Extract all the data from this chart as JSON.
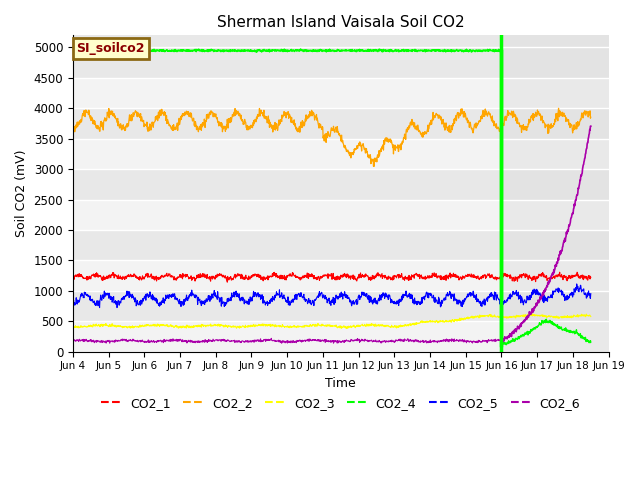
{
  "title": "Sherman Island Vaisala Soil CO2",
  "ylabel": "Soil CO2 (mV)",
  "xlabel": "Time",
  "annotation_text": "SI_soilco2",
  "ylim": [
    0,
    5200
  ],
  "yticks": [
    0,
    500,
    1000,
    1500,
    2000,
    2500,
    3000,
    3500,
    4000,
    4500,
    5000
  ],
  "x_tick_labels": [
    "Jun 4",
    "Jun 5",
    "Jun 6",
    "Jun 7",
    "Jun 8",
    "Jun 9",
    "Jun 10",
    "Jun 11",
    "Jun 12",
    "Jun 13",
    "Jun 14",
    "Jun 15",
    "Jun 16",
    "Jun 17",
    "Jun 18",
    "Jun 19"
  ],
  "x_tick_positions": [
    4,
    5,
    6,
    7,
    8,
    9,
    10,
    11,
    12,
    13,
    14,
    15,
    16,
    17,
    18,
    19
  ],
  "vline_x": 16,
  "background_color": "#e8e8e8",
  "panel2_color": "#d8d8d8",
  "colors": {
    "CO2_1": "#ff0000",
    "CO2_2": "#ffa500",
    "CO2_3": "#ffff00",
    "CO2_4": "#00ff00",
    "CO2_5": "#0000ff",
    "CO2_6": "#aa00aa"
  }
}
